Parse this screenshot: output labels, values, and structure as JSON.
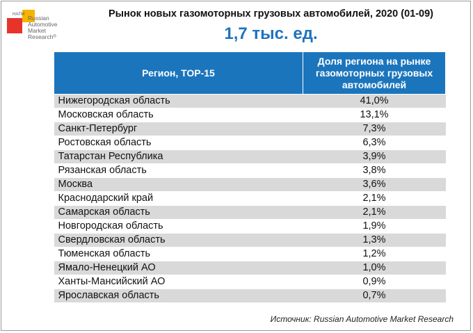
{
  "logo": {
    "small_text": "НАПИ",
    "lines": [
      "Russian",
      "Automotive",
      "Market",
      "Research"
    ],
    "registered": "®"
  },
  "title": "Рынок новых газомоторных грузовых автомобилей, 2020 (01-09)",
  "subtitle": "1,7 тыс. ед.",
  "table": {
    "headers": [
      "Регион, ТОР-15",
      "Доля региона на рынке газомоторных грузовых автомобилей"
    ],
    "rows": [
      {
        "region": "Нижегородская область",
        "share": "41,0%"
      },
      {
        "region": "Московская область",
        "share": "13,1%"
      },
      {
        "region": "Санкт-Петербург",
        "share": "7,3%"
      },
      {
        "region": "Ростовская область",
        "share": "6,3%"
      },
      {
        "region": "Татарстан Республика",
        "share": "3,9%"
      },
      {
        "region": "Рязанская область",
        "share": "3,8%"
      },
      {
        "region": "Москва",
        "share": "3,6%"
      },
      {
        "region": "Краснодарский край",
        "share": "2,1%"
      },
      {
        "region": "Самарская область",
        "share": "2,1%"
      },
      {
        "region": "Новгородская область",
        "share": "1,9%"
      },
      {
        "region": "Свердловская область",
        "share": "1,3%"
      },
      {
        "region": "Тюменская область",
        "share": "1,2%"
      },
      {
        "region": "Ямало-Ненецкий АО",
        "share": "1,0%"
      },
      {
        "region": "Ханты-Мансийский АО",
        "share": "0,9%"
      },
      {
        "region": "Ярославская область",
        "share": "0,7%"
      }
    ]
  },
  "source": "Источник: Russian Automotive Market Research",
  "colors": {
    "header_bg": "#1b75bc",
    "subtitle": "#1e73be",
    "row_alt": "#d9d9d9",
    "logo_red": "#e8332a",
    "logo_yellow": "#f5b400"
  }
}
